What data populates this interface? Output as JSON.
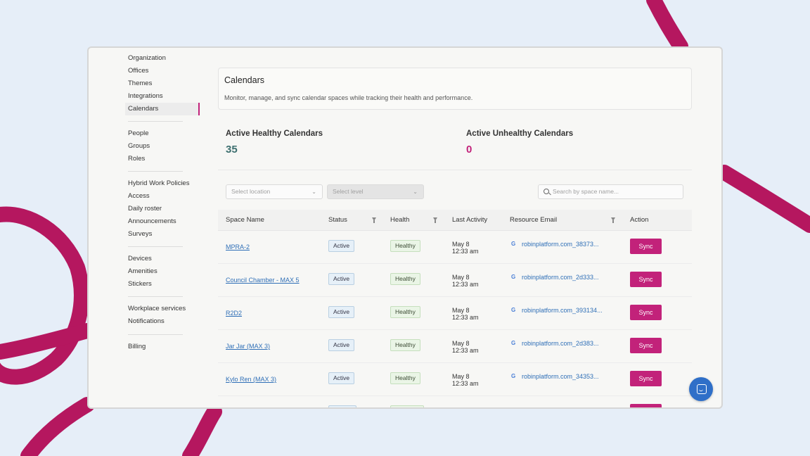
{
  "sidebar": {
    "items": [
      {
        "label": "Organization"
      },
      {
        "label": "Offices"
      },
      {
        "label": "Themes"
      },
      {
        "label": "Integrations"
      },
      {
        "label": "Calendars",
        "active": true
      },
      {
        "label": "People"
      },
      {
        "label": "Groups"
      },
      {
        "label": "Roles"
      },
      {
        "label": "Hybrid Work Policies"
      },
      {
        "label": "Access"
      },
      {
        "label": "Daily roster"
      },
      {
        "label": "Announcements"
      },
      {
        "label": "Surveys"
      },
      {
        "label": "Devices"
      },
      {
        "label": "Amenities"
      },
      {
        "label": "Stickers"
      },
      {
        "label": "Workplace services"
      },
      {
        "label": "Notifications"
      },
      {
        "label": "Billing"
      }
    ]
  },
  "header": {
    "title": "Calendars",
    "description": "Monitor, manage, and sync calendar spaces while tracking their health and performance."
  },
  "stats": {
    "healthy_label": "Active Healthy Calendars",
    "healthy_value": "35",
    "unhealthy_label": "Active Unhealthy Calendars",
    "unhealthy_value": "0"
  },
  "filters": {
    "location_placeholder": "Select location",
    "level_placeholder": "Select level",
    "search_placeholder": "Search by space name..."
  },
  "table": {
    "columns": {
      "space_name": "Space Name",
      "status": "Status",
      "health": "Health",
      "last_activity": "Last Activity",
      "resource_email": "Resource Email",
      "action": "Action"
    },
    "rows": [
      {
        "name": "MPRA-2",
        "status": "Active",
        "health": "Healthy",
        "date": "May 8",
        "time": "12:33 am",
        "email": "robinplatform.com_38373...",
        "action": "Sync"
      },
      {
        "name": "Council Chamber - MAX 5",
        "status": "Active",
        "health": "Healthy",
        "date": "May 8",
        "time": "12:33 am",
        "email": "robinplatform.com_2d333...",
        "action": "Sync"
      },
      {
        "name": "R2D2",
        "status": "Active",
        "health": "Healthy",
        "date": "May 8",
        "time": "12:33 am",
        "email": "robinplatform.com_393134...",
        "action": "Sync"
      },
      {
        "name": "Jar Jar (MAX 3)",
        "status": "Active",
        "health": "Healthy",
        "date": "May 8",
        "time": "12:33 am",
        "email": "robinplatform.com_2d383...",
        "action": "Sync"
      },
      {
        "name": "Kylo Ren (MAX 3)",
        "status": "Active",
        "health": "Healthy",
        "date": "May 8",
        "time": "12:33 am",
        "email": "robinplatform.com_34353...",
        "action": "Sync"
      }
    ]
  },
  "colors": {
    "accent": "#c2227a",
    "healthy_value": "#3d6f6f",
    "unhealthy_value": "#c2227a",
    "link": "#2f6fb7",
    "background": "#e6eef8"
  }
}
